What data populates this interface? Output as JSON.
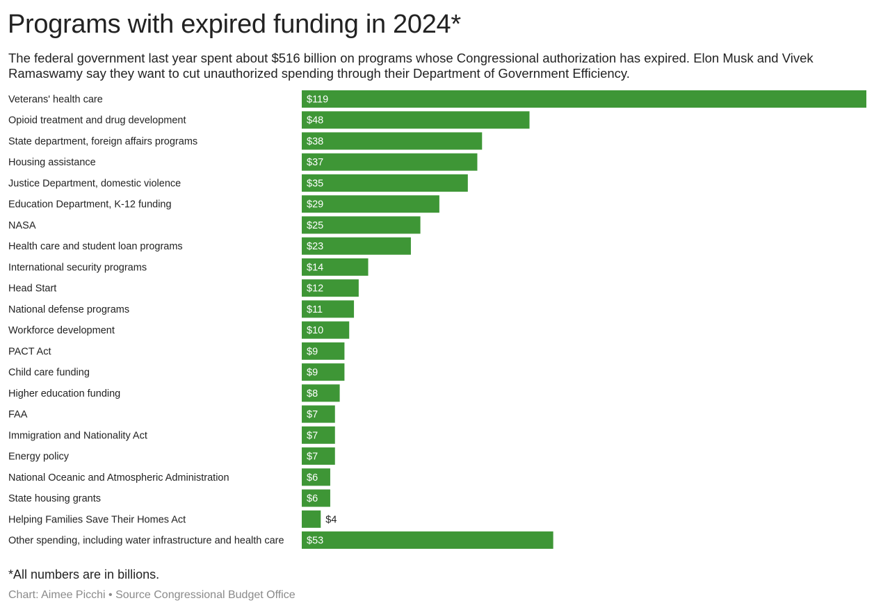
{
  "header": {
    "title": "Programs with expired funding in 2024*",
    "subtitle": "The federal government last year spent about $516 billion on programs whose Congressional authorization has expired. Elon Musk and Vivek Ramaswamy say they want to cut unauthorized spending through their Department of Government Efficiency."
  },
  "chart_data": {
    "type": "bar",
    "orientation": "horizontal",
    "title": "Programs with expired funding in 2024*",
    "value_prefix": "$",
    "units": "billions",
    "bar_color": "#3e9636",
    "grid": false,
    "categories": [
      "Veterans' health care",
      "Opioid treatment and drug development",
      "State department, foreign affairs programs",
      "Housing assistance",
      "Justice Department, domestic violence",
      "Education Department, K-12 funding",
      "NASA",
      "Health care and student loan programs",
      "International security programs",
      "Head Start",
      "National defense programs",
      "Workforce development",
      "PACT Act",
      "Child care funding",
      "Higher education funding",
      "FAA",
      "Immigration and Nationality Act",
      "Energy policy",
      "National Oceanic and Atmospheric Administration",
      "State housing grants",
      "Helping Families Save Their Homes Act",
      "Other spending, including water infrastructure and health care"
    ],
    "values": [
      119,
      48,
      38,
      37,
      35,
      29,
      25,
      23,
      14,
      12,
      11,
      10,
      9,
      9,
      8,
      7,
      7,
      7,
      6,
      6,
      4,
      53
    ],
    "data_labels": [
      "$119",
      "$48",
      "$38",
      "$37",
      "$35",
      "$29",
      "$25",
      "$23",
      "$14",
      "$12",
      "$11",
      "$10",
      "$9",
      "$9",
      "$8",
      "$7",
      "$7",
      "$7",
      "$6",
      "$6",
      "$4",
      "$53"
    ]
  },
  "footer": {
    "note": "*All numbers are in billions.",
    "credit": "Chart: Aimee Picchi • Source Congressional Budget Office"
  }
}
